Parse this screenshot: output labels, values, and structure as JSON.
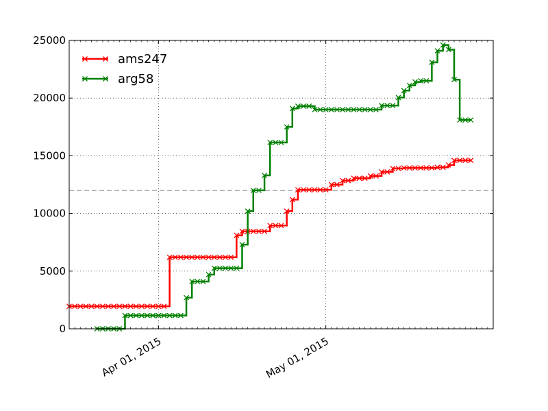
{
  "chart_data": {
    "type": "line",
    "step": true,
    "x_axis": {
      "type": "date",
      "range": [
        "2015-03-16",
        "2015-05-31"
      ],
      "tick_labels": [
        {
          "date": "2015-04-01",
          "label": "Apr 01, 2015"
        },
        {
          "date": "2015-05-01",
          "label": "May 01, 2015"
        }
      ]
    },
    "y_axis": {
      "range": [
        0,
        25000
      ],
      "ticks": [
        0,
        5000,
        10000,
        15000,
        20000,
        25000
      ],
      "tick_labels": [
        "0",
        "5000",
        "10000",
        "15000",
        "20000",
        "25000"
      ]
    },
    "grid": true,
    "legend": {
      "location": "upper-left"
    },
    "reference_line": {
      "y": 12000,
      "style": "dashed",
      "color": "#808080"
    },
    "series": [
      {
        "name": "ams247",
        "color": "#ff0000",
        "marker": "x",
        "points": [
          [
            "2015-03-16",
            1950
          ],
          [
            "2015-03-17",
            1950
          ],
          [
            "2015-03-18",
            1950
          ],
          [
            "2015-03-19",
            1950
          ],
          [
            "2015-03-20",
            1950
          ],
          [
            "2015-03-21",
            1950
          ],
          [
            "2015-03-22",
            1950
          ],
          [
            "2015-03-23",
            1950
          ],
          [
            "2015-03-24",
            1950
          ],
          [
            "2015-03-25",
            1950
          ],
          [
            "2015-03-26",
            1950
          ],
          [
            "2015-03-27",
            1950
          ],
          [
            "2015-03-28",
            1950
          ],
          [
            "2015-03-29",
            1950
          ],
          [
            "2015-03-30",
            1950
          ],
          [
            "2015-03-31",
            1950
          ],
          [
            "2015-04-01",
            1950
          ],
          [
            "2015-04-02",
            1950
          ],
          [
            "2015-04-03",
            6200
          ],
          [
            "2015-04-04",
            6200
          ],
          [
            "2015-04-05",
            6200
          ],
          [
            "2015-04-06",
            6200
          ],
          [
            "2015-04-07",
            6200
          ],
          [
            "2015-04-08",
            6200
          ],
          [
            "2015-04-09",
            6200
          ],
          [
            "2015-04-10",
            6200
          ],
          [
            "2015-04-11",
            6200
          ],
          [
            "2015-04-12",
            6200
          ],
          [
            "2015-04-13",
            6200
          ],
          [
            "2015-04-14",
            6200
          ],
          [
            "2015-04-15",
            8100
          ],
          [
            "2015-04-16",
            8450
          ],
          [
            "2015-04-17",
            8450
          ],
          [
            "2015-04-18",
            8450
          ],
          [
            "2015-04-19",
            8450
          ],
          [
            "2015-04-20",
            8450
          ],
          [
            "2015-04-21",
            8950
          ],
          [
            "2015-04-22",
            8950
          ],
          [
            "2015-04-23",
            8950
          ],
          [
            "2015-04-24",
            10200
          ],
          [
            "2015-04-25",
            11200
          ],
          [
            "2015-04-26",
            12050
          ],
          [
            "2015-04-27",
            12050
          ],
          [
            "2015-04-28",
            12050
          ],
          [
            "2015-04-29",
            12050
          ],
          [
            "2015-04-30",
            12050
          ],
          [
            "2015-05-01",
            12050
          ],
          [
            "2015-05-02",
            12500
          ],
          [
            "2015-05-03",
            12500
          ],
          [
            "2015-05-04",
            12850
          ],
          [
            "2015-05-05",
            12850
          ],
          [
            "2015-05-06",
            13050
          ],
          [
            "2015-05-07",
            13050
          ],
          [
            "2015-05-08",
            13050
          ],
          [
            "2015-05-09",
            13250
          ],
          [
            "2015-05-10",
            13250
          ],
          [
            "2015-05-11",
            13600
          ],
          [
            "2015-05-12",
            13600
          ],
          [
            "2015-05-13",
            13900
          ],
          [
            "2015-05-14",
            13900
          ],
          [
            "2015-05-15",
            13950
          ],
          [
            "2015-05-16",
            13950
          ],
          [
            "2015-05-17",
            13950
          ],
          [
            "2015-05-18",
            13950
          ],
          [
            "2015-05-19",
            13950
          ],
          [
            "2015-05-20",
            13950
          ],
          [
            "2015-05-21",
            14000
          ],
          [
            "2015-05-22",
            14000
          ],
          [
            "2015-05-23",
            14200
          ],
          [
            "2015-05-24",
            14600
          ],
          [
            "2015-05-25",
            14600
          ],
          [
            "2015-05-26",
            14600
          ],
          [
            "2015-05-27",
            14600
          ]
        ]
      },
      {
        "name": "arg58",
        "color": "#008000",
        "marker": "x",
        "points": [
          [
            "2015-03-21",
            0
          ],
          [
            "2015-03-22",
            0
          ],
          [
            "2015-03-23",
            0
          ],
          [
            "2015-03-24",
            0
          ],
          [
            "2015-03-25",
            0
          ],
          [
            "2015-03-26",
            1150
          ],
          [
            "2015-03-27",
            1150
          ],
          [
            "2015-03-28",
            1150
          ],
          [
            "2015-03-29",
            1150
          ],
          [
            "2015-03-30",
            1150
          ],
          [
            "2015-03-31",
            1150
          ],
          [
            "2015-04-01",
            1150
          ],
          [
            "2015-04-02",
            1150
          ],
          [
            "2015-04-03",
            1150
          ],
          [
            "2015-04-04",
            1150
          ],
          [
            "2015-04-05",
            1150
          ],
          [
            "2015-04-06",
            2700
          ],
          [
            "2015-04-07",
            4100
          ],
          [
            "2015-04-08",
            4100
          ],
          [
            "2015-04-09",
            4100
          ],
          [
            "2015-04-10",
            4700
          ],
          [
            "2015-04-11",
            5250
          ],
          [
            "2015-04-12",
            5250
          ],
          [
            "2015-04-13",
            5250
          ],
          [
            "2015-04-14",
            5250
          ],
          [
            "2015-04-15",
            5250
          ],
          [
            "2015-04-16",
            7300
          ],
          [
            "2015-04-17",
            10200
          ],
          [
            "2015-04-18",
            12000
          ],
          [
            "2015-04-19",
            12000
          ],
          [
            "2015-04-20",
            13300
          ],
          [
            "2015-04-21",
            16150
          ],
          [
            "2015-04-22",
            16150
          ],
          [
            "2015-04-23",
            16150
          ],
          [
            "2015-04-24",
            17500
          ],
          [
            "2015-04-25",
            19100
          ],
          [
            "2015-04-26",
            19300
          ],
          [
            "2015-04-27",
            19300
          ],
          [
            "2015-04-28",
            19300
          ],
          [
            "2015-04-29",
            19000
          ],
          [
            "2015-04-30",
            19000
          ],
          [
            "2015-05-01",
            19000
          ],
          [
            "2015-05-02",
            19000
          ],
          [
            "2015-05-03",
            19000
          ],
          [
            "2015-05-04",
            19000
          ],
          [
            "2015-05-05",
            19000
          ],
          [
            "2015-05-06",
            19000
          ],
          [
            "2015-05-07",
            19000
          ],
          [
            "2015-05-08",
            19000
          ],
          [
            "2015-05-09",
            19000
          ],
          [
            "2015-05-10",
            19000
          ],
          [
            "2015-05-11",
            19350
          ],
          [
            "2015-05-12",
            19350
          ],
          [
            "2015-05-13",
            19350
          ],
          [
            "2015-05-14",
            20050
          ],
          [
            "2015-05-15",
            20650
          ],
          [
            "2015-05-16",
            21100
          ],
          [
            "2015-05-17",
            21400
          ],
          [
            "2015-05-18",
            21500
          ],
          [
            "2015-05-19",
            21500
          ],
          [
            "2015-05-20",
            23100
          ],
          [
            "2015-05-21",
            24100
          ],
          [
            "2015-05-22",
            24600
          ],
          [
            "2015-05-23",
            24200
          ],
          [
            "2015-05-24",
            21600
          ],
          [
            "2015-05-25",
            18100
          ],
          [
            "2015-05-26",
            18100
          ],
          [
            "2015-05-27",
            18100
          ]
        ]
      }
    ]
  }
}
